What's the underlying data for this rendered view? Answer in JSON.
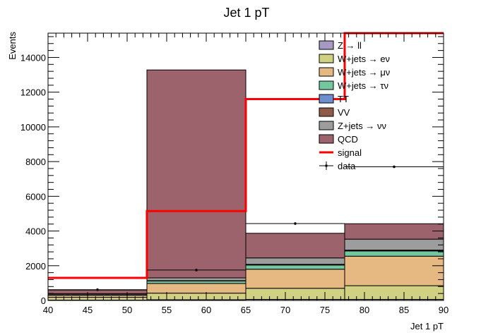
{
  "chart_data": {
    "type": "bar",
    "title": "Jet 1 pT",
    "xlabel": "Jet 1 pT",
    "ylabel": "Events",
    "xlim": [
      40,
      90
    ],
    "ylim": [
      0,
      15400
    ],
    "xticks": [
      40,
      45,
      50,
      55,
      60,
      65,
      70,
      75,
      80,
      85,
      90
    ],
    "yticks": [
      0,
      2000,
      4000,
      6000,
      8000,
      10000,
      12000,
      14000
    ],
    "bin_edges": [
      40,
      52.5,
      65,
      77.5,
      90
    ],
    "legend_position": "top-right",
    "series": [
      {
        "name": "Z → ll",
        "color": "#a699c3",
        "values": [
          20,
          40,
          60,
          60
        ]
      },
      {
        "name": "W+jets → eν",
        "color": "#d1d184",
        "values": [
          160,
          380,
          640,
          790
        ]
      },
      {
        "name": "W+jets → μν",
        "color": "#e6b882",
        "values": [
          120,
          560,
          1100,
          1700
        ]
      },
      {
        "name": "W+jets → τν",
        "color": "#73c89f",
        "values": [
          20,
          140,
          240,
          300
        ]
      },
      {
        "name": "TT",
        "color": "#6e8fcf",
        "values": [
          5,
          10,
          20,
          30
        ]
      },
      {
        "name": "VV",
        "color": "#8f5a48",
        "values": [
          5,
          10,
          20,
          20
        ]
      },
      {
        "name": "Z+jets → νν",
        "color": "#9d9d9d",
        "values": [
          60,
          160,
          370,
          630
        ]
      },
      {
        "name": "QCD",
        "color": "#9c636c",
        "values": [
          210,
          11980,
          1420,
          890
        ]
      }
    ],
    "signal": {
      "name": "signal",
      "color": "#ff0000",
      "values": [
        1300,
        5150,
        11600,
        20000
      ]
    },
    "data": {
      "name": "data",
      "x": [
        46.25,
        58.75,
        71.25,
        83.75
      ],
      "y": [
        620,
        1750,
        4430,
        7700
      ]
    }
  }
}
